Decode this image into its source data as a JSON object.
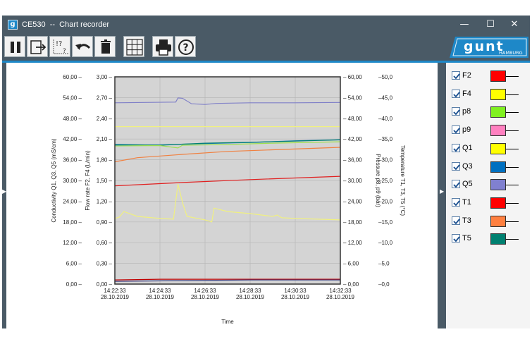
{
  "window": {
    "title": "CE530  --  Chart recorder",
    "app_icon": "app-logo-icon",
    "controls": {
      "minimize": "—",
      "maximize": "☐",
      "close": "✕"
    }
  },
  "toolbar": {
    "buttons": [
      {
        "name": "pause-button",
        "icon": "pause-icon"
      },
      {
        "name": "export-button",
        "icon": "export-icon"
      },
      {
        "name": "axis-settings-button",
        "icon": "axis-help-icon"
      },
      {
        "name": "undo-button",
        "icon": "undo-icon"
      },
      {
        "name": "delete-button",
        "icon": "trash-icon"
      },
      {
        "name": "grid-toggle-button",
        "icon": "grid-icon"
      },
      {
        "name": "print-button",
        "icon": "printer-icon"
      },
      {
        "name": "help-button",
        "icon": "help-icon"
      }
    ],
    "logo": {
      "main": "gunt",
      "sub": "HAMBURG"
    }
  },
  "chart_data": {
    "type": "line",
    "xlabel": "Time",
    "x_ticks": [
      {
        "time": "14:22:33",
        "date": "28.10.2019"
      },
      {
        "time": "14:24:33",
        "date": "28.10.2019"
      },
      {
        "time": "14:26:33",
        "date": "28.10.2019"
      },
      {
        "time": "14:28:33",
        "date": "28.10.2019"
      },
      {
        "time": "14:30:33",
        "date": "28.10.2019"
      },
      {
        "time": "14:32:33",
        "date": "28.10.2019"
      }
    ],
    "axes": {
      "conductivity": {
        "label": "Conductivity   Q1, Q3, Q5   (mS/cm)",
        "ticks": [
          "60,00 –",
          "54,00 –",
          "48,00 –",
          "42,00 –",
          "36,00 –",
          "30,00 –",
          "24,00 –",
          "18,00 –",
          "12,00 –",
          "6,00 –",
          "0,00 –"
        ],
        "range": [
          0,
          60
        ]
      },
      "flow": {
        "label": "Flow rate   F2, F4   (L/min)",
        "ticks": [
          "3,00 –",
          "2,70 –",
          "2,40 –",
          "2,10 –",
          "1,80 –",
          "1,50 –",
          "1,20 –",
          "0,90 –",
          "0,60 –",
          "0,30 –",
          "0,00 –"
        ],
        "range": [
          0,
          3
        ]
      },
      "pressure": {
        "label": "Pressure   p8, p9   (bar)",
        "ticks": [
          "– 60,00",
          "– 54,00",
          "– 48,00",
          "– 42,00",
          "– 36,00",
          "– 30,00",
          "– 24,00",
          "– 18,00",
          "– 12,00",
          "– 6,00",
          "– 0,00"
        ],
        "range": [
          0,
          60
        ]
      },
      "temperature": {
        "label": "Temperature   T1, T3, T5   (°C)",
        "ticks": [
          "–50,0",
          "–45,0",
          "–40,0",
          "–35,0",
          "–30,0",
          "–25,0",
          "–20,0",
          "–15,0",
          "–10,0",
          "–5,0",
          "–0,0"
        ],
        "range": [
          0,
          50
        ]
      }
    },
    "x_minutes": [
      0,
      10
    ],
    "grid": true,
    "series": [
      {
        "name": "Q5",
        "color": "#8080c8",
        "axis": "conductivity",
        "points": [
          [
            0,
            52.5
          ],
          [
            2.7,
            52.7
          ],
          [
            2.8,
            53.9
          ],
          [
            3.0,
            53.8
          ],
          [
            3.4,
            52.2
          ],
          [
            4.0,
            52.0
          ],
          [
            4.5,
            52.3
          ],
          [
            6,
            52.5
          ],
          [
            8,
            52.5
          ],
          [
            10,
            52.6
          ]
        ]
      },
      {
        "name": "Q1",
        "color": "#f0f080",
        "axis": "conductivity",
        "points": [
          [
            0,
            45.6
          ],
          [
            10,
            45.6
          ]
        ]
      },
      {
        "name": "Q3",
        "color": "#1e78c8",
        "axis": "conductivity",
        "points": [
          [
            0,
            40.2
          ],
          [
            2,
            40.3
          ],
          [
            4,
            40.7
          ],
          [
            6,
            41.0
          ],
          [
            8,
            41.5
          ],
          [
            10,
            41.8
          ]
        ]
      },
      {
        "name": "T5",
        "color": "#008070",
        "axis": "temperature",
        "points": [
          [
            0,
            33.7
          ],
          [
            2,
            33.5
          ],
          [
            4,
            34.0
          ],
          [
            6,
            34.2
          ],
          [
            8,
            34.5
          ],
          [
            10,
            34.8
          ]
        ]
      },
      {
        "name": "p9",
        "color": "#a0e050",
        "axis": "pressure",
        "points": [
          [
            0,
            40.0
          ],
          [
            2,
            40.1
          ],
          [
            2.8,
            39.4
          ],
          [
            3.0,
            40.2
          ],
          [
            5,
            40.4
          ],
          [
            7,
            40.8
          ],
          [
            10,
            41.2
          ]
        ]
      },
      {
        "name": "T3",
        "color": "#f08040",
        "axis": "temperature",
        "points": [
          [
            0,
            29.5
          ],
          [
            1,
            30.5
          ],
          [
            3,
            31.3
          ],
          [
            5,
            32.0
          ],
          [
            7,
            32.4
          ],
          [
            10,
            33.0
          ]
        ]
      },
      {
        "name": "T1",
        "color": "#e02020",
        "axis": "temperature",
        "points": [
          [
            0,
            23.7
          ],
          [
            3,
            24.5
          ],
          [
            6,
            25.2
          ],
          [
            10,
            26.0
          ]
        ]
      },
      {
        "name": "F4",
        "color": "#f0f080",
        "axis": "flow",
        "points": [
          [
            0,
            0.95
          ],
          [
            0.2,
            0.97
          ],
          [
            0.4,
            1.05
          ],
          [
            1,
            0.98
          ],
          [
            2,
            0.95
          ],
          [
            2.6,
            0.94
          ],
          [
            2.8,
            1.45
          ],
          [
            3.0,
            1.18
          ],
          [
            3.2,
            0.98
          ],
          [
            4,
            0.93
          ],
          [
            4.3,
            0.9
          ],
          [
            4.4,
            1.1
          ],
          [
            5,
            1.05
          ],
          [
            6,
            1.02
          ],
          [
            7,
            0.98
          ],
          [
            7.2,
            1.0
          ],
          [
            7.4,
            0.96
          ],
          [
            8,
            0.95
          ],
          [
            10,
            0.93
          ]
        ]
      },
      {
        "name": "F2",
        "color": "#c00000",
        "axis": "flow",
        "points": [
          [
            0,
            0.06
          ],
          [
            2,
            0.07
          ],
          [
            5,
            0.07
          ],
          [
            10,
            0.07
          ]
        ]
      },
      {
        "name": "p8",
        "color": "#404080",
        "axis": "pressure",
        "points": [
          [
            0,
            0.8
          ],
          [
            3,
            1.0
          ],
          [
            6,
            1.2
          ],
          [
            10,
            1.2
          ]
        ]
      }
    ]
  },
  "legend": [
    {
      "name": "F2",
      "color": "#ff0000",
      "checked": true
    },
    {
      "name": "F4",
      "color": "#ffff00",
      "checked": true
    },
    {
      "name": "p8",
      "color": "#80f020",
      "checked": true
    },
    {
      "name": "p9",
      "color": "#ff80c0",
      "checked": true
    },
    {
      "name": "Q1",
      "color": "#ffff00",
      "checked": true
    },
    {
      "name": "Q3",
      "color": "#0070c0",
      "checked": true
    },
    {
      "name": "Q5",
      "color": "#8080d0",
      "checked": true
    },
    {
      "name": "T1",
      "color": "#ff0000",
      "checked": true
    },
    {
      "name": "T3",
      "color": "#ff8040",
      "checked": true
    },
    {
      "name": "T5",
      "color": "#008070",
      "checked": true
    }
  ],
  "colors": {
    "chrome": "#4a5a66",
    "accent": "#1e88c8",
    "plot_bg": "#d4d4d4"
  }
}
